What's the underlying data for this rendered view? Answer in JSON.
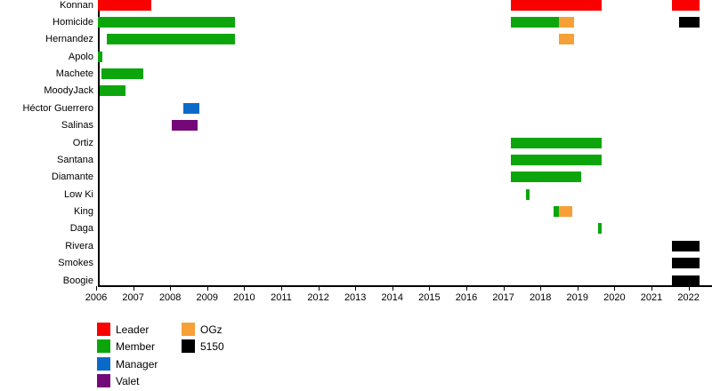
{
  "chart_data": {
    "type": "gantt",
    "title": "",
    "x_axis": {
      "min_year": 2006,
      "max_year": 2022,
      "ticks": [
        2006,
        2007,
        2008,
        2009,
        2010,
        2011,
        2012,
        2013,
        2014,
        2015,
        2016,
        2017,
        2018,
        2019,
        2020,
        2021,
        2022
      ]
    },
    "grid": "off",
    "legend_position": "bottom-left",
    "roles": {
      "Leader": "#fa0000",
      "Member": "#0ca60c",
      "Manager": "#0b6ac8",
      "Valet": "#750878",
      "OGz": "#f8a038",
      "5150": "#000000"
    },
    "legend": [
      {
        "label": "Leader",
        "role": "Leader",
        "column": 0
      },
      {
        "label": "Member",
        "role": "Member",
        "column": 0
      },
      {
        "label": "Manager",
        "role": "Manager",
        "column": 0
      },
      {
        "label": "Valet",
        "role": "Valet",
        "column": 0
      },
      {
        "label": "OGz",
        "role": "OGz",
        "column": 1
      },
      {
        "label": "5150",
        "role": "5150",
        "column": 1
      }
    ],
    "rows": [
      {
        "label": "Konnan",
        "bars": [
          {
            "role": "Leader",
            "start": 2006.05,
            "end": 2007.5
          },
          {
            "role": "Leader",
            "start": 2017.2,
            "end": 2019.65
          },
          {
            "role": "Leader",
            "start": 2021.55,
            "end": 2022.3
          }
        ]
      },
      {
        "label": "Homicide",
        "bars": [
          {
            "role": "Member",
            "start": 2006.05,
            "end": 2009.75
          },
          {
            "role": "Member",
            "start": 2017.2,
            "end": 2018.5
          },
          {
            "role": "OGz",
            "start": 2018.5,
            "end": 2018.9
          },
          {
            "role": "5150",
            "start": 2021.75,
            "end": 2022.3
          }
        ]
      },
      {
        "label": "Hernandez",
        "bars": [
          {
            "role": "Member",
            "start": 2006.3,
            "end": 2009.75
          },
          {
            "role": "OGz",
            "start": 2018.5,
            "end": 2018.9
          }
        ]
      },
      {
        "label": "Apolo",
        "bars": [
          {
            "role": "Member",
            "start": 2006.05,
            "end": 2006.17
          }
        ]
      },
      {
        "label": "Machete",
        "bars": [
          {
            "role": "Member",
            "start": 2006.15,
            "end": 2007.27
          }
        ]
      },
      {
        "label": "MoodyJack",
        "bars": [
          {
            "role": "Member",
            "start": 2006.1,
            "end": 2006.8
          }
        ]
      },
      {
        "label": "Héctor Guerrero",
        "bars": [
          {
            "role": "Manager",
            "start": 2008.35,
            "end": 2008.8
          }
        ]
      },
      {
        "label": "Salinas",
        "bars": [
          {
            "role": "Valet",
            "start": 2008.05,
            "end": 2008.75
          }
        ]
      },
      {
        "label": "Ortiz",
        "bars": [
          {
            "role": "Member",
            "start": 2017.2,
            "end": 2019.65
          }
        ]
      },
      {
        "label": "Santana",
        "bars": [
          {
            "role": "Member",
            "start": 2017.2,
            "end": 2019.65
          }
        ]
      },
      {
        "label": "Diamante",
        "bars": [
          {
            "role": "Member",
            "start": 2017.2,
            "end": 2019.1
          }
        ]
      },
      {
        "label": "Low Ki",
        "bars": [
          {
            "role": "Member",
            "start": 2017.6,
            "end": 2017.7
          }
        ]
      },
      {
        "label": "King",
        "bars": [
          {
            "role": "Member",
            "start": 2018.35,
            "end": 2018.5
          },
          {
            "role": "OGz",
            "start": 2018.5,
            "end": 2018.85
          }
        ]
      },
      {
        "label": "Daga",
        "bars": [
          {
            "role": "Member",
            "start": 2019.55,
            "end": 2019.65
          }
        ]
      },
      {
        "label": "Rivera",
        "bars": [
          {
            "role": "5150",
            "start": 2021.55,
            "end": 2022.3
          }
        ]
      },
      {
        "label": "Smokes",
        "bars": [
          {
            "role": "5150",
            "start": 2021.55,
            "end": 2022.3
          }
        ]
      },
      {
        "label": "Boogie",
        "bars": [
          {
            "role": "5150",
            "start": 2021.55,
            "end": 2022.3
          }
        ]
      }
    ]
  }
}
